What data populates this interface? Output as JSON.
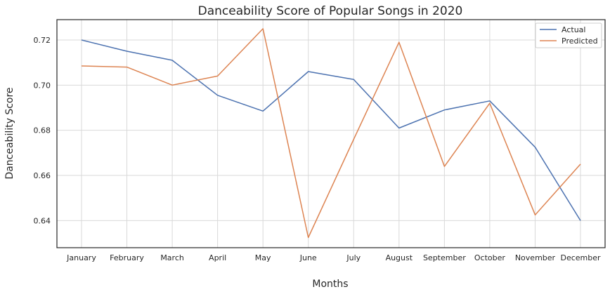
{
  "chart_data": {
    "type": "line",
    "title": "Danceability Score of Popular Songs in 2020",
    "xlabel": "Months",
    "ylabel": "Danceability Score",
    "categories": [
      "January",
      "February",
      "March",
      "April",
      "May",
      "June",
      "July",
      "August",
      "September",
      "October",
      "November",
      "December"
    ],
    "series": [
      {
        "name": "Actual",
        "color": "#4c72b0",
        "values": [
          0.72,
          0.715,
          0.711,
          0.6955,
          0.6885,
          0.706,
          0.7025,
          0.681,
          0.689,
          0.693,
          0.6725,
          0.64
        ]
      },
      {
        "name": "Predicted",
        "color": "#dd8452",
        "values": [
          0.7085,
          0.708,
          0.7,
          0.704,
          0.725,
          0.6325,
          0.676,
          0.719,
          0.664,
          0.692,
          0.6425,
          0.665
        ]
      }
    ],
    "ylim": [
      0.628,
      0.729
    ],
    "yticks": [
      "0.64",
      "0.66",
      "0.68",
      "0.70",
      "0.72"
    ],
    "grid": true,
    "legend": "top-right"
  }
}
